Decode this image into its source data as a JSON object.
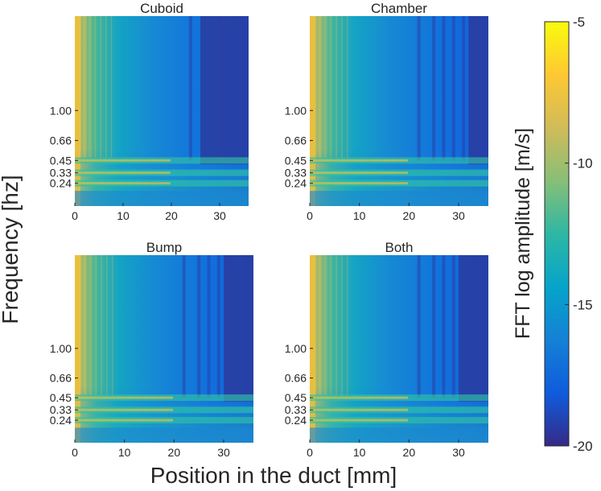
{
  "figure": {
    "xlabel": "Position in the duct [mm]",
    "ylabel": "Frequency [hz]"
  },
  "colorbar": {
    "label": "FFT log amplitude [m/s]",
    "range": [
      -20,
      -5
    ],
    "ticks": [
      -5,
      -10,
      -15,
      -20
    ],
    "tick_labels": [
      "-5",
      "-10",
      "-15",
      "-20"
    ],
    "colormap": "parula",
    "colors": [
      "#352a87",
      "#0f5cdd",
      "#1481d6",
      "#06a4ca",
      "#2eb7a4",
      "#87bf77",
      "#d1bb59",
      "#fec832",
      "#f9fb0e"
    ]
  },
  "chart_data": [
    {
      "type": "heatmap",
      "title": "Cuboid",
      "xlim": [
        0,
        36
      ],
      "x_ticks": [
        0,
        10,
        20,
        30
      ],
      "x_tick_labels": [
        "0",
        "10",
        "20",
        "30"
      ],
      "y_ticks": [
        1.0,
        0.66,
        0.45,
        0.33,
        0.24
      ],
      "y_tick_labels": [
        "1.00",
        "0.66",
        "0.45",
        "0.33",
        "0.24"
      ],
      "band_frequencies": [
        0.45,
        0.33,
        0.24
      ],
      "dark_regions_x": [
        24,
        30,
        32
      ],
      "dark_region_start_x": 26
    },
    {
      "type": "heatmap",
      "title": "Chamber",
      "xlim": [
        0,
        36
      ],
      "x_ticks": [
        0,
        10,
        20,
        30
      ],
      "x_tick_labels": [
        "0",
        "10",
        "20",
        "30"
      ],
      "y_ticks": [
        1.0,
        0.66,
        0.45,
        0.33,
        0.24
      ],
      "y_tick_labels": [
        "1.00",
        "0.66",
        "0.45",
        "0.33",
        "0.24"
      ],
      "band_frequencies": [
        0.45,
        0.33,
        0.24
      ],
      "dark_regions_x": [
        22,
        25,
        27,
        29,
        31,
        33
      ],
      "dark_region_start_x": 32
    },
    {
      "type": "heatmap",
      "title": "Bump",
      "xlim": [
        0,
        36
      ],
      "x_ticks": [
        0,
        10,
        20,
        30
      ],
      "x_tick_labels": [
        "0",
        "10",
        "20",
        "30"
      ],
      "y_ticks": [
        1.0,
        0.66,
        0.45,
        0.33,
        0.24
      ],
      "y_tick_labels": [
        "1.00",
        "0.66",
        "0.45",
        "0.33",
        "0.24"
      ],
      "band_frequencies": [
        0.45,
        0.33,
        0.24
      ],
      "dark_regions_x": [
        22,
        25,
        27,
        29,
        31
      ],
      "dark_region_start_x": 30
    },
    {
      "type": "heatmap",
      "title": "Both",
      "xlim": [
        0,
        36
      ],
      "x_ticks": [
        0,
        10,
        20,
        30
      ],
      "x_tick_labels": [
        "0",
        "10",
        "20",
        "30"
      ],
      "y_ticks": [
        1.0,
        0.66,
        0.45,
        0.33,
        0.24
      ],
      "y_tick_labels": [
        "1.00",
        "0.66",
        "0.45",
        "0.33",
        "0.24"
      ],
      "band_frequencies": [
        0.45,
        0.33,
        0.24
      ],
      "dark_regions_x": [
        22,
        25,
        27,
        29
      ],
      "dark_region_start_x": 30
    }
  ]
}
